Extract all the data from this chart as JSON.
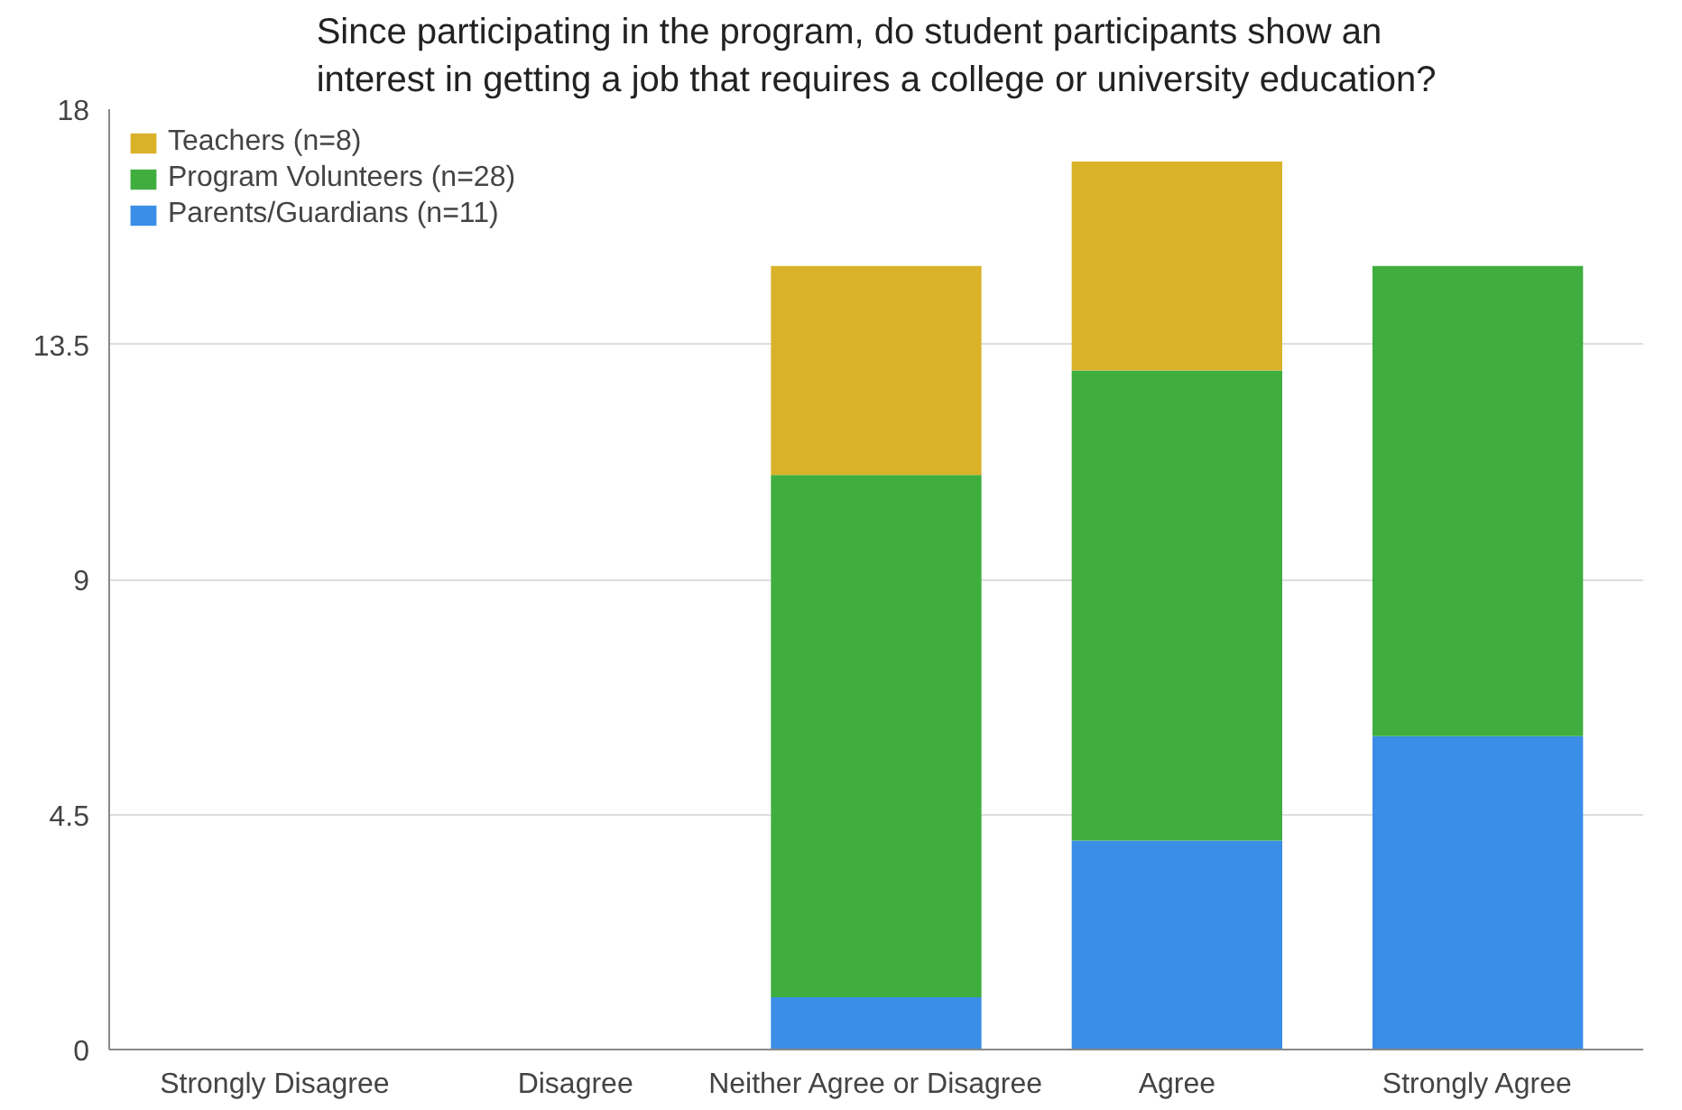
{
  "chart_data": {
    "type": "bar",
    "title": "Since participating in the program, do student participants show an interest in getting a job that requires a college or university education?",
    "categories": [
      "Strongly Disagree",
      "Disagree",
      "Neither Agree or Disagree",
      "Agree",
      "Strongly Agree"
    ],
    "series": [
      {
        "name": "Parents/Guardians (n=11)",
        "color": "#3a8ee6",
        "values": [
          0,
          0,
          1,
          4,
          6
        ]
      },
      {
        "name": "Program Volunteers (n=28)",
        "color": "#3fae3f",
        "values": [
          0,
          0,
          10,
          9,
          9
        ]
      },
      {
        "name": "Teachers (n=8)",
        "color": "#d9b22a",
        "values": [
          0,
          0,
          4,
          4,
          0
        ]
      }
    ],
    "stacked": true,
    "ylim": [
      0,
      18
    ],
    "yticks": [
      0,
      4.5,
      9,
      13.5,
      18
    ],
    "grid": "y",
    "legend": "top left"
  }
}
